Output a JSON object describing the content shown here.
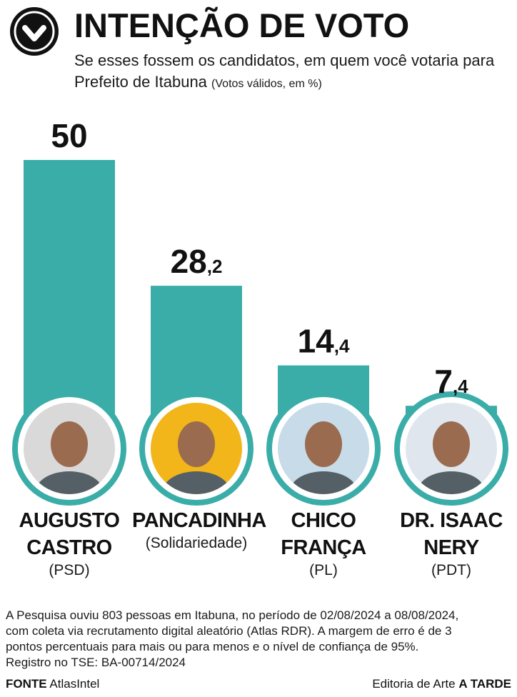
{
  "header": {
    "title": "INTENÇÃO DE VOTO",
    "subtitle": "Se esses fossem os candidatos, em quem você votaria para Prefeito de Itabuna",
    "subtitle_note": "(Votos válidos, em %)",
    "icon": "check-circle-icon"
  },
  "chart_data": {
    "type": "bar",
    "categories": [
      "AUGUSTO CASTRO",
      "PANCADINHA",
      "CHICO FRANÇA",
      "DR. ISAAC NERY"
    ],
    "values": [
      50,
      28.2,
      14.4,
      7.4
    ],
    "value_labels": [
      {
        "int": "50",
        "dec": ""
      },
      {
        "int": "28",
        "dec": ",2"
      },
      {
        "int": "14",
        "dec": ",4"
      },
      {
        "int": "7",
        "dec": ",4"
      }
    ],
    "ylim": [
      0,
      50
    ],
    "grid": false,
    "bar_color": "#3aada8"
  },
  "candidates": [
    {
      "name_lines": [
        "AUGUSTO",
        "CASTRO"
      ],
      "party": "(PSD)",
      "photo_bg": "#d9d9d9"
    },
    {
      "name_lines": [
        "PANCADINHA"
      ],
      "party": "(Solidariedade)",
      "photo_bg": "#f2b51a"
    },
    {
      "name_lines": [
        "CHICO",
        "FRANÇA"
      ],
      "party": "(PL)",
      "photo_bg": "#c7dbe8"
    },
    {
      "name_lines": [
        "DR. ISAAC",
        "NERY"
      ],
      "party": "(PDT)",
      "photo_bg": "#dfe6ee"
    }
  ],
  "footnote": {
    "lines": [
      "A Pesquisa ouviu 803 pessoas em Itabuna, no período de 02/08/2024 a 08/08/2024,",
      "com coleta via recrutamento digital aleatório (Atlas RDR). A margem de erro é de 3",
      "pontos percentuais para mais ou para menos e o nível de confiança de 95%.",
      "Registro no TSE: BA-00714/2024"
    ]
  },
  "footer": {
    "source_label": "FONTE",
    "source": "AtlasIntel",
    "credit_prefix": "Editoria de Arte",
    "credit_brand": "A TARDE"
  }
}
